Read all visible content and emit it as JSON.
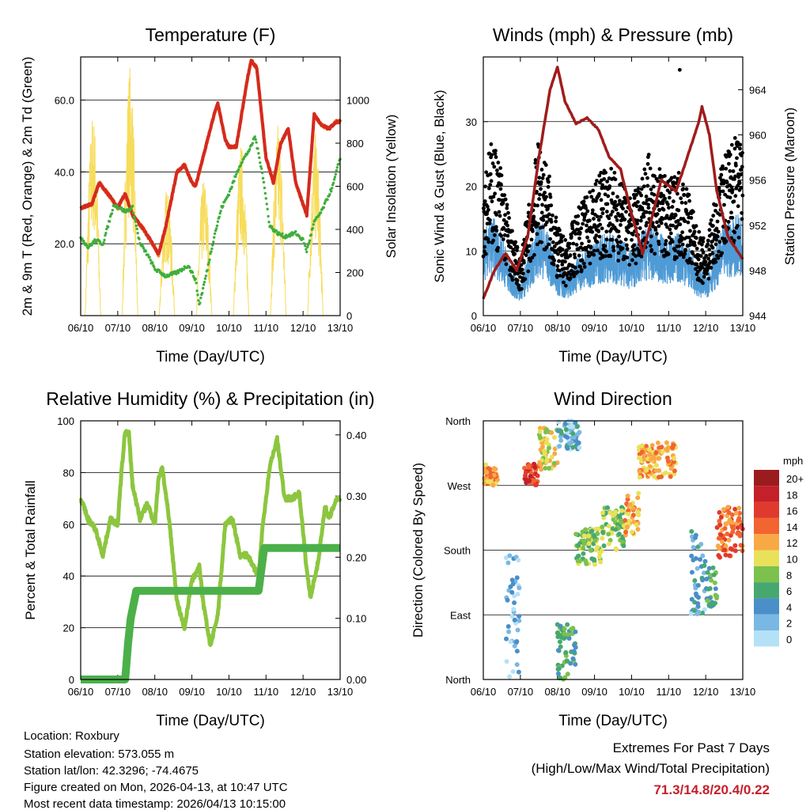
{
  "chart_data": [
    {
      "type": "line",
      "title": "Temperature (F)",
      "xlabel": "Time (Day/UTC)",
      "ylabel": "2m & 9m T (Red, Orange) & 2m Td (Green)",
      "ylabel_right": "Solar Insolation (Yellow)",
      "xticks": [
        "06/10",
        "07/10",
        "08/10",
        "09/10",
        "10/10",
        "11/10",
        "12/10",
        "13/10"
      ],
      "xlim": [
        0,
        7
      ],
      "ylim": [
        0,
        72
      ],
      "ylim_right": [
        0,
        1200
      ],
      "yticks": [
        "20.0",
        "40.0",
        "60.0"
      ],
      "yticks_right": [
        "0",
        "200",
        "400",
        "600",
        "800",
        "1000"
      ],
      "temp_2m": [
        [
          0,
          30
        ],
        [
          0.3,
          31
        ],
        [
          0.5,
          37
        ],
        [
          0.8,
          33
        ],
        [
          1,
          30
        ],
        [
          1.2,
          34
        ],
        [
          1.4,
          28
        ],
        [
          1.7,
          24
        ],
        [
          2,
          19
        ],
        [
          2.1,
          17
        ],
        [
          2.3,
          25
        ],
        [
          2.6,
          40
        ],
        [
          2.8,
          42
        ],
        [
          3,
          37
        ],
        [
          3.1,
          36
        ],
        [
          3.4,
          48
        ],
        [
          3.6,
          56
        ],
        [
          3.7,
          59
        ],
        [
          3.9,
          49
        ],
        [
          4,
          47
        ],
        [
          4.2,
          47
        ],
        [
          4.5,
          66
        ],
        [
          4.6,
          71
        ],
        [
          4.75,
          69
        ],
        [
          4.9,
          54
        ],
        [
          5,
          44
        ],
        [
          5.2,
          37
        ],
        [
          5.4,
          48
        ],
        [
          5.6,
          52
        ],
        [
          5.8,
          37
        ],
        [
          6,
          31
        ],
        [
          6.1,
          28
        ],
        [
          6.2,
          42
        ],
        [
          6.3,
          56
        ],
        [
          6.5,
          53
        ],
        [
          6.7,
          52
        ],
        [
          6.9,
          54
        ],
        [
          7,
          54
        ]
      ],
      "dewpoint_2m": [
        [
          0,
          22
        ],
        [
          0.2,
          19
        ],
        [
          0.4,
          21
        ],
        [
          0.6,
          20
        ],
        [
          0.9,
          31
        ],
        [
          1.2,
          29
        ],
        [
          1.4,
          30
        ],
        [
          1.6,
          20
        ],
        [
          1.8,
          17
        ],
        [
          2,
          13
        ],
        [
          2.3,
          11
        ],
        [
          2.6,
          12
        ],
        [
          2.9,
          14
        ],
        [
          3.1,
          10
        ],
        [
          3.2,
          3
        ],
        [
          3.4,
          12
        ],
        [
          3.6,
          22
        ],
        [
          3.8,
          30
        ],
        [
          4,
          34
        ],
        [
          4.3,
          42
        ],
        [
          4.6,
          47
        ],
        [
          4.7,
          50
        ],
        [
          4.9,
          40
        ],
        [
          5.1,
          25
        ],
        [
          5.3,
          23
        ],
        [
          5.5,
          22
        ],
        [
          5.8,
          23
        ],
        [
          6,
          21
        ],
        [
          6.1,
          18
        ],
        [
          6.3,
          26
        ],
        [
          6.5,
          29
        ],
        [
          6.8,
          36
        ],
        [
          7,
          44
        ]
      ],
      "solar_daily_peaks": [
        950,
        1170,
        600,
        650,
        800,
        900,
        850
      ]
    },
    {
      "type": "scatter",
      "title": "Winds (mph) & Pressure (mb)",
      "xlabel": "Time (Day/UTC)",
      "ylabel": "Sonic Wind & Gust (Blue, Black)",
      "ylabel_right": "Station Pressure (Maroon)",
      "xlim": [
        0,
        7
      ],
      "ylim": [
        0,
        40
      ],
      "ylim_right": [
        944,
        966.9
      ],
      "yticks": [
        "0",
        "10",
        "20",
        "30"
      ],
      "yticks_right": [
        "944",
        "948",
        "952",
        "956",
        "960",
        "964"
      ],
      "sustained_wind": [
        [
          0,
          10
        ],
        [
          0.25,
          12
        ],
        [
          0.5,
          10
        ],
        [
          0.75,
          6
        ],
        [
          1,
          4
        ],
        [
          1.25,
          8
        ],
        [
          1.5,
          12
        ],
        [
          1.75,
          10
        ],
        [
          2,
          6
        ],
        [
          2.25,
          5
        ],
        [
          2.5,
          7
        ],
        [
          2.75,
          8
        ],
        [
          3,
          9
        ],
        [
          3.25,
          10
        ],
        [
          3.5,
          10
        ],
        [
          3.75,
          9
        ],
        [
          4,
          8
        ],
        [
          4.25,
          10
        ],
        [
          4.5,
          11
        ],
        [
          4.75,
          10
        ],
        [
          5,
          9
        ],
        [
          5.25,
          10
        ],
        [
          5.5,
          9
        ],
        [
          5.75,
          6
        ],
        [
          6,
          5
        ],
        [
          6.25,
          8
        ],
        [
          6.5,
          11
        ],
        [
          6.75,
          12
        ],
        [
          7,
          12
        ]
      ],
      "gust_factor": 2.0,
      "max_gust": [
        5.3,
        38
      ],
      "pressure": [
        [
          0,
          945.5
        ],
        [
          0.3,
          948
        ],
        [
          0.6,
          949.5
        ],
        [
          0.9,
          948
        ],
        [
          1.2,
          951
        ],
        [
          1.5,
          958
        ],
        [
          1.8,
          964
        ],
        [
          2,
          966
        ],
        [
          2.2,
          963
        ],
        [
          2.5,
          961
        ],
        [
          2.8,
          961.5
        ],
        [
          3.1,
          960.5
        ],
        [
          3.4,
          958
        ],
        [
          3.7,
          957
        ],
        [
          4,
          953
        ],
        [
          4.3,
          949.5
        ],
        [
          4.5,
          952
        ],
        [
          4.8,
          956
        ],
        [
          5.2,
          955
        ],
        [
          5.5,
          958
        ],
        [
          5.8,
          961
        ],
        [
          5.9,
          962.5
        ],
        [
          6.1,
          960
        ],
        [
          6.3,
          955
        ],
        [
          6.6,
          951
        ],
        [
          6.9,
          949.5
        ],
        [
          7,
          949
        ]
      ]
    },
    {
      "type": "line",
      "title": "Relative Humidity (%) & Precipitation (in)",
      "xlabel": "Time (Day/UTC)",
      "ylabel": "Percent & Total Rainfall",
      "xlim": [
        0,
        7
      ],
      "ylim": [
        0,
        100
      ],
      "ylim_right": [
        0,
        0.423
      ],
      "yticks": [
        "0",
        "20",
        "40",
        "60",
        "80",
        "100"
      ],
      "yticks_right": [
        "0.00",
        "0.10",
        "0.20",
        "0.30",
        "0.40"
      ],
      "rh": [
        [
          0,
          70
        ],
        [
          0.2,
          62
        ],
        [
          0.4,
          58
        ],
        [
          0.6,
          48
        ],
        [
          0.8,
          62
        ],
        [
          1,
          60
        ],
        [
          1.1,
          80
        ],
        [
          1.2,
          96
        ],
        [
          1.3,
          95
        ],
        [
          1.4,
          75
        ],
        [
          1.6,
          62
        ],
        [
          1.8,
          68
        ],
        [
          2,
          60
        ],
        [
          2.1,
          78
        ],
        [
          2.2,
          82
        ],
        [
          2.4,
          60
        ],
        [
          2.6,
          30
        ],
        [
          2.8,
          20
        ],
        [
          3,
          38
        ],
        [
          3.2,
          44
        ],
        [
          3.3,
          30
        ],
        [
          3.5,
          13
        ],
        [
          3.7,
          25
        ],
        [
          3.9,
          60
        ],
        [
          4.1,
          62
        ],
        [
          4.3,
          48
        ],
        [
          4.5,
          48
        ],
        [
          4.8,
          40
        ],
        [
          4.9,
          58
        ],
        [
          5.1,
          82
        ],
        [
          5.3,
          93
        ],
        [
          5.5,
          70
        ],
        [
          5.7,
          70
        ],
        [
          5.9,
          72
        ],
        [
          6.1,
          42
        ],
        [
          6.2,
          32
        ],
        [
          6.4,
          45
        ],
        [
          6.6,
          67
        ],
        [
          6.7,
          62
        ],
        [
          6.9,
          70
        ],
        [
          7,
          70
        ]
      ],
      "precip": [
        [
          0,
          0
        ],
        [
          1.2,
          0
        ],
        [
          1.28,
          0.06
        ],
        [
          1.35,
          0.1
        ],
        [
          1.5,
          0.145
        ],
        [
          4.8,
          0.145
        ],
        [
          4.95,
          0.215
        ],
        [
          7,
          0.215
        ]
      ]
    },
    {
      "type": "scatter",
      "title": "Wind Direction",
      "xlabel": "Time (Day/UTC)",
      "ylabel": "Direction (Colored By Speed)",
      "xlim": [
        0,
        7
      ],
      "ylim": [
        0,
        360
      ],
      "yticks": [
        "North",
        "East",
        "South",
        "West",
        "North"
      ],
      "clusters": [
        [
          0,
          0.4,
          270,
          300,
          12
        ],
        [
          0.6,
          1.0,
          0,
          180,
          2
        ],
        [
          1.1,
          1.5,
          270,
          300,
          16
        ],
        [
          1.5,
          2.0,
          290,
          350,
          10
        ],
        [
          2.0,
          2.5,
          0,
          80,
          6
        ],
        [
          2.0,
          2.6,
          320,
          360,
          3
        ],
        [
          2.5,
          3.2,
          160,
          210,
          8
        ],
        [
          3.2,
          3.8,
          180,
          240,
          8
        ],
        [
          3.8,
          4.2,
          200,
          260,
          12
        ],
        [
          4.2,
          5.2,
          280,
          330,
          12
        ],
        [
          5.6,
          6.0,
          90,
          210,
          3
        ],
        [
          6.0,
          6.3,
          100,
          160,
          6
        ],
        [
          6.3,
          7.0,
          170,
          240,
          14
        ]
      ],
      "legend": {
        "title": "mph",
        "labels": [
          "20+",
          "18",
          "16",
          "14",
          "12",
          "10",
          "8",
          "6",
          "4",
          "2",
          "0"
        ],
        "colors": [
          "#9b1c1f",
          "#c4202a",
          "#e03a2e",
          "#f26430",
          "#f9a846",
          "#e9e15a",
          "#7cc14e",
          "#47a86f",
          "#4a8fc8",
          "#7ab8e4",
          "#b5e1f7"
        ]
      }
    }
  ],
  "info": [
    "Location: Roxbury",
    "Station elevation: 573.055 m",
    "Station lat/lon: 42.3296; -74.4675",
    "Figure created on Mon, 2026-04-13, at 10:47 UTC",
    "Most recent data timestamp: 2026/04/13 10:15:00"
  ],
  "extremes": {
    "title": "Extremes For Past 7 Days",
    "subtitle": "(High/Low/Max Wind/Total Precipitation)",
    "values": "71.3/14.8/20.4/0.22",
    "color": "#c4202a"
  }
}
